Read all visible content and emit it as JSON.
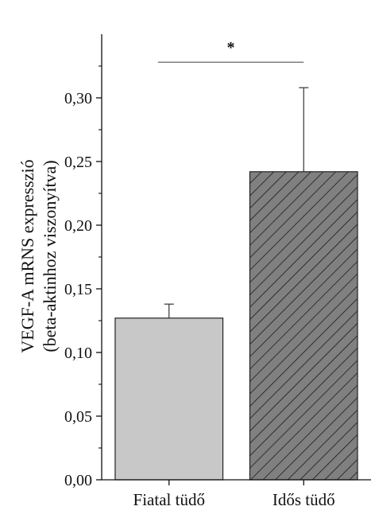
{
  "chart_data": {
    "type": "bar",
    "categories": [
      "Fiatal tüdő",
      "Idős tüdő"
    ],
    "values": [
      0.127,
      0.242
    ],
    "errors": [
      0.011,
      0.066
    ],
    "bar_colors": [
      "#c8c8c8",
      "#808080"
    ],
    "bar_patterns": [
      "none",
      "hatch"
    ],
    "ylabel_line1": "VEGF-A mRNS expresszió",
    "ylabel_line2": "(beta-aktinhoz viszonyítva)",
    "ylim": [
      0,
      0.35
    ],
    "yticks": [
      0,
      0.05,
      0.1,
      0.15,
      0.2,
      0.25,
      0.3
    ],
    "ytick_labels": [
      "0,00",
      "0,05",
      "0,10",
      "0,15",
      "0,20",
      "0,25",
      "0,30"
    ],
    "significance": {
      "label": "*",
      "between": [
        0,
        1
      ],
      "y": 0.328
    }
  }
}
